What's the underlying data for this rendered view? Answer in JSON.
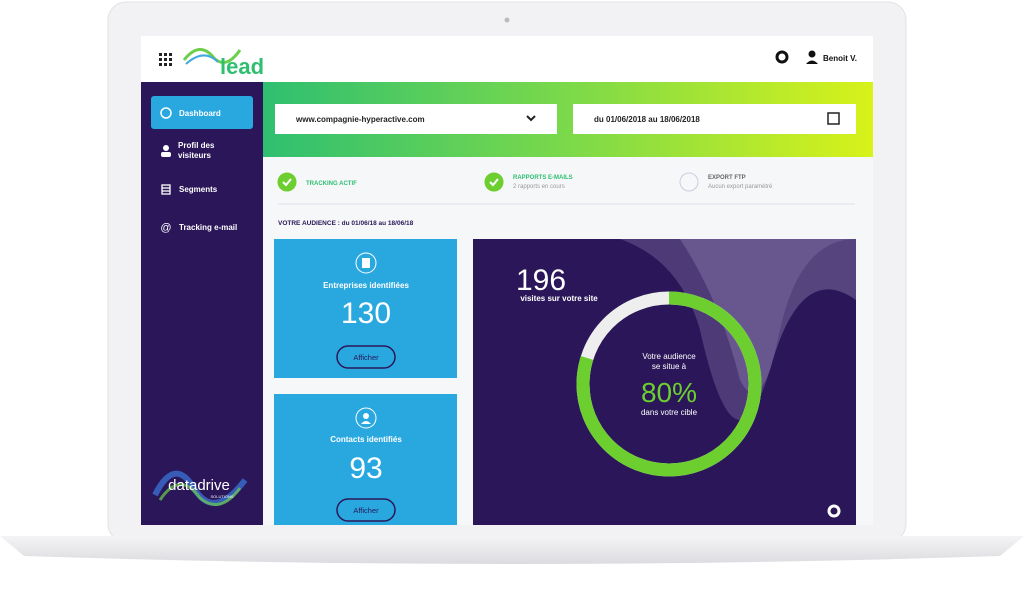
{
  "header": {
    "logo": "lead",
    "user": "Benoit V."
  },
  "sidebar": {
    "items": [
      "Dashboard",
      "Profil des visiteurs",
      "Segments",
      "Tracking e-mail"
    ],
    "brand": "datadrive",
    "brand_sub": "SOLUTIONS"
  },
  "filters": {
    "site": "www.compagnie-hyperactive.com",
    "dates": "du 01/06/2018 au 18/06/2018"
  },
  "status": [
    {
      "title": "TRACKING ACTIF",
      "subtitle": null,
      "done": true
    },
    {
      "title": "RAPPORTS E-MAILS",
      "subtitle": "2 rapports en cours",
      "done": true
    },
    {
      "title": "EXPORT FTP",
      "subtitle": "Aucun export paramétré",
      "done": false
    }
  ],
  "audience_heading": "VOTRE AUDIENCE : du 01/06/18 au 18/06/18",
  "cards": [
    {
      "title": "Entreprises identifiées",
      "value": "130",
      "button": "Afficher"
    },
    {
      "title": "Contacts identifiés",
      "value": "93",
      "button": "Afficher"
    }
  ],
  "visits": {
    "value": "196",
    "label": "visites sur votre site"
  },
  "gauge": {
    "line1": "Votre audience",
    "line2": "se situe à",
    "value": 80,
    "label": "80%",
    "caption": "dans votre cible"
  }
}
